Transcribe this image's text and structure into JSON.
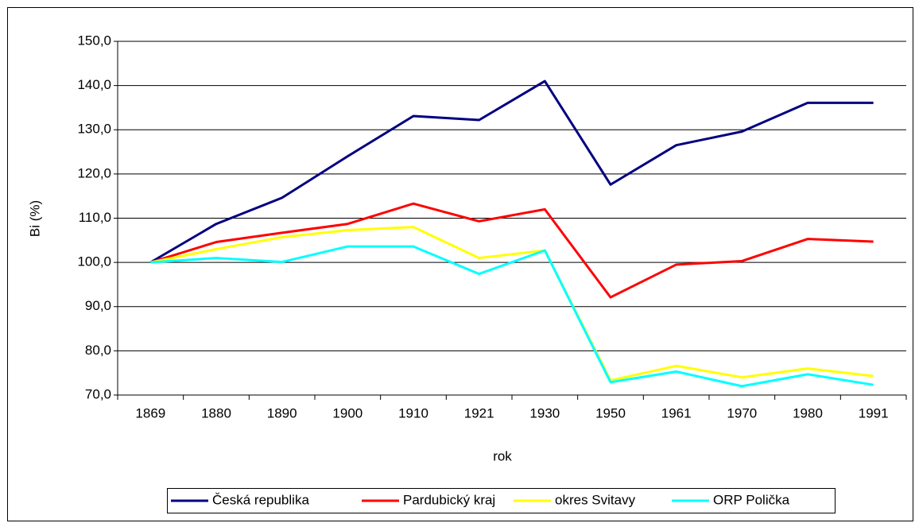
{
  "chart_data": {
    "type": "line",
    "x_label": "rok",
    "y_label": "Bi (%)",
    "categories": [
      "1869",
      "1880",
      "1890",
      "1900",
      "1910",
      "1921",
      "1930",
      "1950",
      "1961",
      "1970",
      "1980",
      "1991"
    ],
    "series": [
      {
        "name": "Česká republika",
        "color": "#000080",
        "values": [
          100,
          108.7,
          114.6,
          124,
          133.1,
          132.2,
          141,
          117.6,
          126.5,
          129.6,
          136.1,
          136.1
        ]
      },
      {
        "name": "Pardubický kraj",
        "color": "#ff0000",
        "values": [
          100,
          104.6,
          106.7,
          108.7,
          113.3,
          109.3,
          112,
          92.1,
          99.5,
          100.3,
          105.3,
          104.7
        ]
      },
      {
        "name": "okres Svitavy",
        "color": "#ffff00",
        "values": [
          100,
          103.0,
          105.7,
          107.3,
          108.0,
          101.0,
          102.7,
          73.3,
          76.6,
          74.0,
          76.0,
          74.3
        ]
      },
      {
        "name": "ORP Polička",
        "color": "#00ffff",
        "values": [
          100,
          101.0,
          100.1,
          103.6,
          103.6,
          97.4,
          102.7,
          72.9,
          75.3,
          72.0,
          74.7,
          72.3
        ]
      }
    ],
    "ylim": [
      70,
      150
    ],
    "yticks": [
      {
        "value": 70,
        "label": "70,0"
      },
      {
        "value": 80,
        "label": "80,0"
      },
      {
        "value": 90,
        "label": "90,0"
      },
      {
        "value": 100,
        "label": "100,0"
      },
      {
        "value": 110,
        "label": "110,0"
      },
      {
        "value": 120,
        "label": "120,0"
      },
      {
        "value": 130,
        "label": "130,0"
      },
      {
        "value": 140,
        "label": "140,0"
      },
      {
        "value": 150,
        "label": "150,0"
      }
    ],
    "grid": true,
    "legend": "bottom"
  }
}
